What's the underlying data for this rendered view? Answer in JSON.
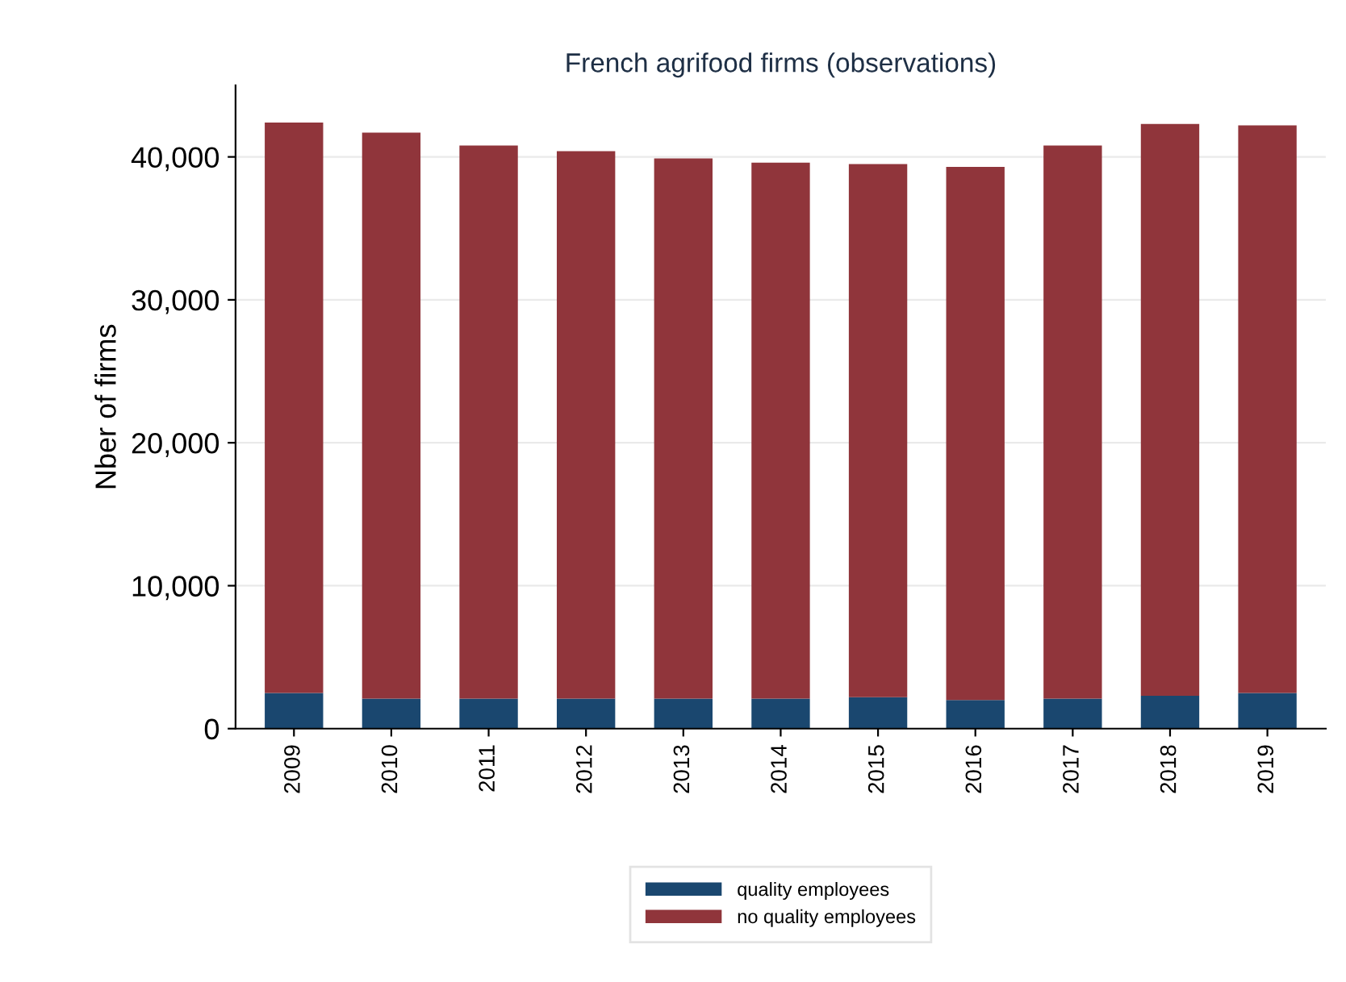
{
  "chart_data": {
    "type": "bar",
    "title": "French agrifood firms (observations)",
    "ylabel": "Nber of firms",
    "categories": [
      "2009",
      "2010",
      "2011",
      "2012",
      "2013",
      "2014",
      "2015",
      "2016",
      "2017",
      "2018",
      "2019"
    ],
    "stacked": true,
    "series": [
      {
        "name": "quality employees",
        "color": "#1a476f",
        "values": [
          2500,
          2100,
          2100,
          2100,
          2100,
          2100,
          2200,
          2000,
          2100,
          2300,
          2500
        ]
      },
      {
        "name": "no quality employees",
        "color": "#90353b",
        "values": [
          39900,
          39600,
          38700,
          38300,
          37800,
          37500,
          37300,
          37300,
          38700,
          40000,
          39700
        ]
      }
    ],
    "ylim": [
      0,
      45000
    ],
    "yticks": [
      {
        "value": 0,
        "label": "0"
      },
      {
        "value": 10000,
        "label": "10,000"
      },
      {
        "value": 20000,
        "label": "20,000"
      },
      {
        "value": 30000,
        "label": "30,000"
      },
      {
        "value": 40000,
        "label": "40,000"
      }
    ],
    "grid": "y",
    "legend": "bottom"
  }
}
